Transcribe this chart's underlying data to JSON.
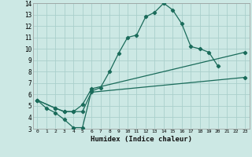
{
  "xlabel": "Humidex (Indice chaleur)",
  "bg_color": "#cce8e4",
  "grid_color": "#aacfcb",
  "line_color": "#1a6b5a",
  "xlim": [
    -0.5,
    23.5
  ],
  "ylim": [
    3,
    14
  ],
  "xticks": [
    0,
    1,
    2,
    3,
    4,
    5,
    6,
    7,
    8,
    9,
    10,
    11,
    12,
    13,
    14,
    15,
    16,
    17,
    18,
    19,
    20,
    21,
    22,
    23
  ],
  "yticks": [
    3,
    4,
    5,
    6,
    7,
    8,
    9,
    10,
    11,
    12,
    13,
    14
  ],
  "line1_x": [
    0,
    1,
    2,
    3,
    4,
    5,
    6,
    7,
    8,
    9,
    10,
    11,
    12,
    13,
    14,
    15,
    16,
    17,
    18,
    19,
    20
  ],
  "line1_y": [
    5.5,
    4.8,
    4.4,
    3.8,
    3.1,
    3.1,
    6.3,
    6.6,
    8.0,
    9.6,
    11.0,
    11.2,
    12.8,
    13.2,
    14.0,
    13.4,
    12.2,
    10.2,
    10.0,
    9.7,
    8.5
  ],
  "line2_x": [
    0,
    2,
    3,
    4,
    5,
    6,
    23
  ],
  "line2_y": [
    5.5,
    4.8,
    4.5,
    4.5,
    4.5,
    6.2,
    7.5
  ],
  "line3_x": [
    0,
    2,
    3,
    4,
    5,
    6,
    23
  ],
  "line3_y": [
    5.5,
    4.8,
    4.5,
    4.5,
    5.1,
    6.5,
    9.7
  ]
}
